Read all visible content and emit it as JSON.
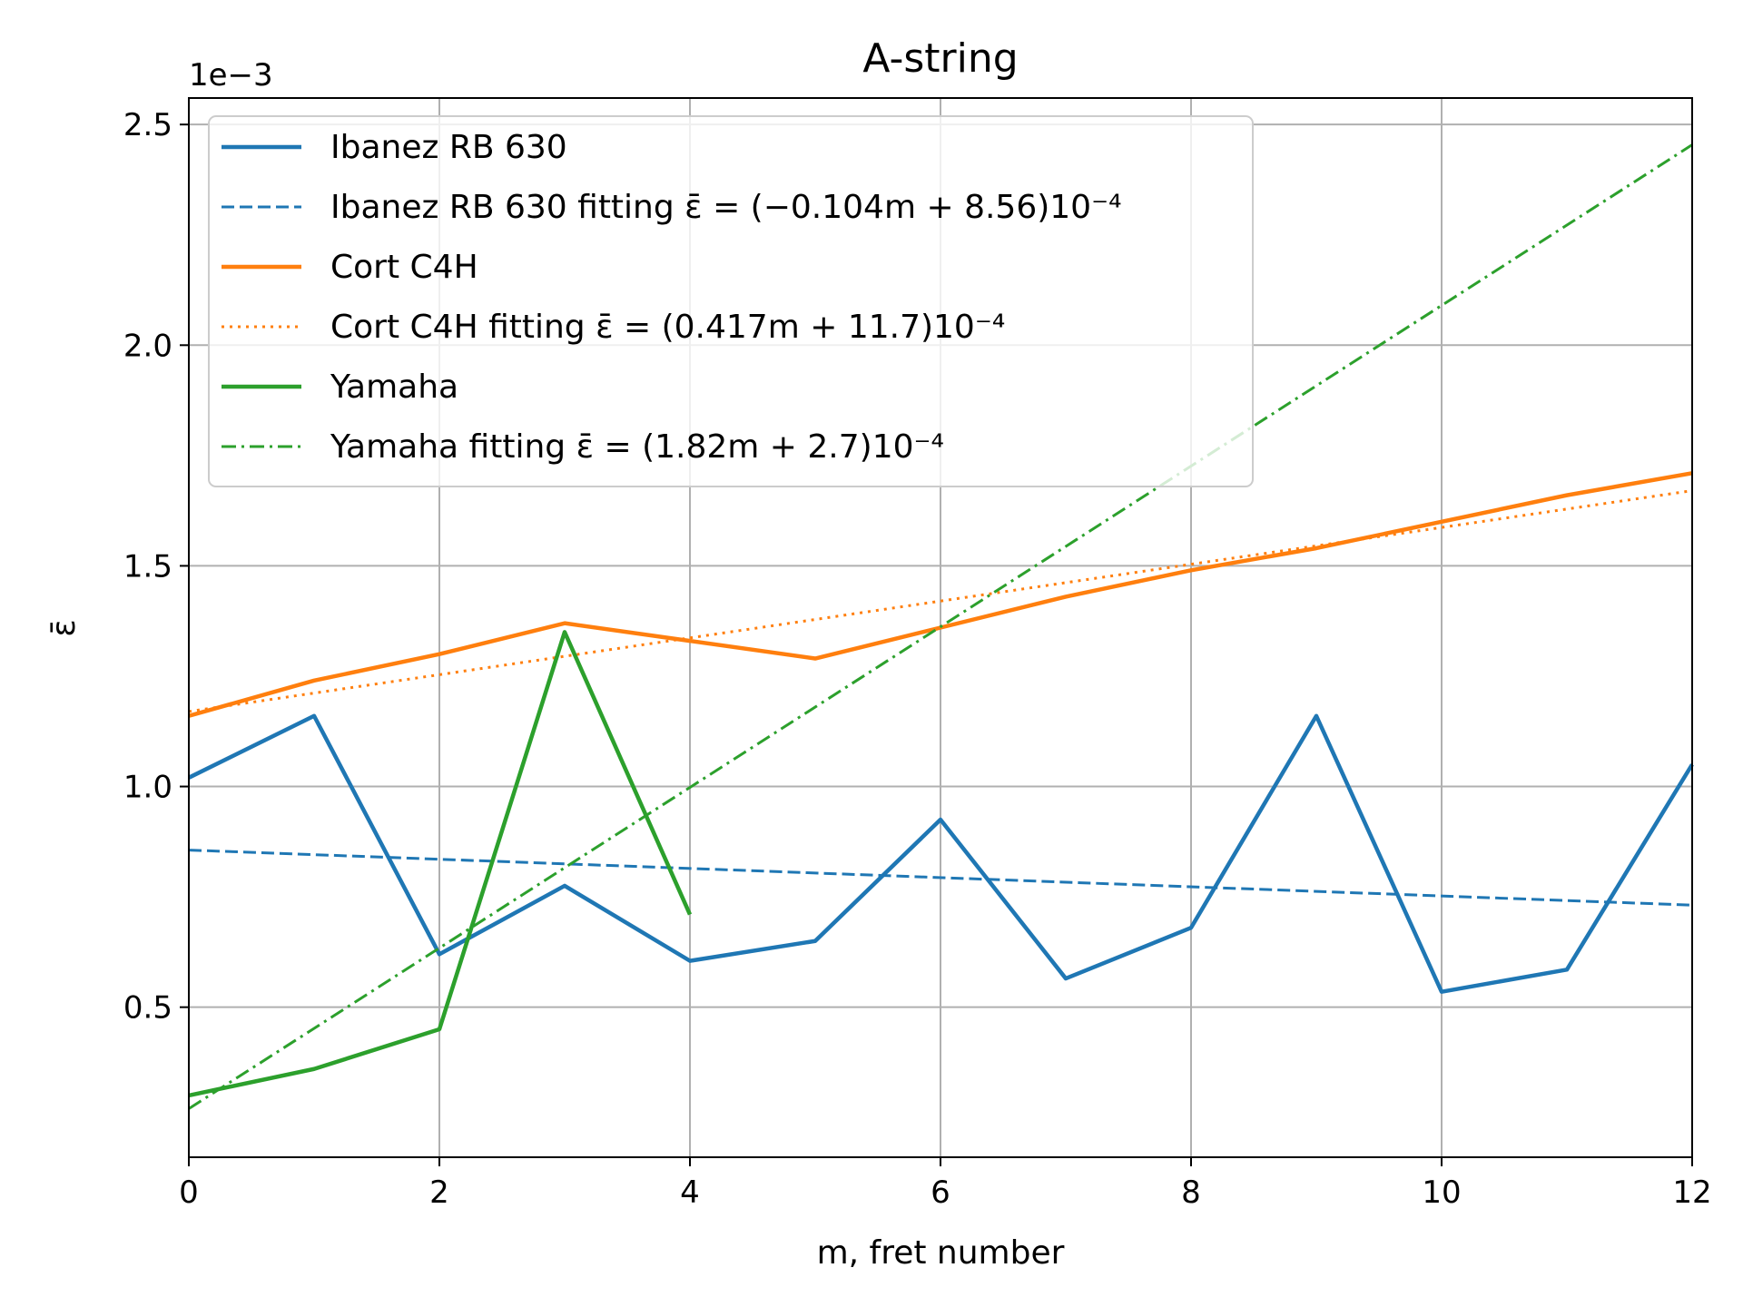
{
  "chart_data": {
    "type": "line",
    "title": "A-string",
    "xlabel": "m, fret number",
    "ylabel": "ε̄",
    "y_offset_text": "1e−3",
    "xlim": [
      0,
      12
    ],
    "ylim": [
      0.00016,
      0.00256
    ],
    "x_ticks": [
      0,
      2,
      4,
      6,
      8,
      10,
      12
    ],
    "x_tick_labels": [
      "0",
      "2",
      "4",
      "6",
      "8",
      "10",
      "12"
    ],
    "y_ticks": [
      0.0005,
      0.001,
      0.0015,
      0.002,
      0.0025
    ],
    "y_tick_labels": [
      "0.5",
      "1.0",
      "1.5",
      "2.0",
      "2.5"
    ],
    "grid": true,
    "legend_position": "upper-left",
    "colors": {
      "blue": "#1f77b4",
      "orange": "#ff7f0e",
      "green": "#2ca02c",
      "grid": "#b0b0b0"
    },
    "series": [
      {
        "name": "Ibanez RB 630",
        "color": "#1f77b4",
        "style": "solid",
        "x": [
          0,
          1,
          2,
          3,
          4,
          5,
          6,
          7,
          8,
          9,
          10,
          11,
          12
        ],
        "y": [
          0.00102,
          0.00116,
          0.00062,
          0.000775,
          0.000605,
          0.00065,
          0.000925,
          0.000565,
          0.00068,
          0.00116,
          0.000535,
          0.000585,
          0.00105
        ]
      },
      {
        "name": "Ibanez RB 630 fitting",
        "formula": "ε̄ = (−0.104m + 8.56)10⁻⁴",
        "color": "#1f77b4",
        "style": "dashed",
        "x": [
          0,
          12
        ],
        "y": [
          0.000856,
          0.0007312
        ]
      },
      {
        "name": "Cort C4H",
        "color": "#ff7f0e",
        "style": "solid",
        "x": [
          0,
          1,
          2,
          3,
          4,
          5,
          6,
          7,
          8,
          9,
          10,
          11,
          12
        ],
        "y": [
          0.00116,
          0.00124,
          0.0013,
          0.00137,
          0.00133,
          0.00129,
          0.00136,
          0.00143,
          0.00149,
          0.00154,
          0.0016,
          0.00166,
          0.00171
        ]
      },
      {
        "name": "Cort C4H fitting",
        "formula": "ε̄ = (0.417m + 11.7)10⁻⁴",
        "color": "#ff7f0e",
        "style": "dotted",
        "x": [
          0,
          12
        ],
        "y": [
          0.00117,
          0.0016704
        ]
      },
      {
        "name": "Yamaha",
        "color": "#2ca02c",
        "style": "solid",
        "x": [
          0,
          1,
          2,
          3,
          4
        ],
        "y": [
          0.0003,
          0.00036,
          0.00045,
          0.00135,
          0.00071
        ]
      },
      {
        "name": "Yamaha fitting",
        "formula": "ε̄ = (1.82m + 2.7)10⁻⁴",
        "color": "#2ca02c",
        "style": "dashdot",
        "x": [
          0,
          12
        ],
        "y": [
          0.00027,
          0.002454
        ]
      }
    ]
  }
}
